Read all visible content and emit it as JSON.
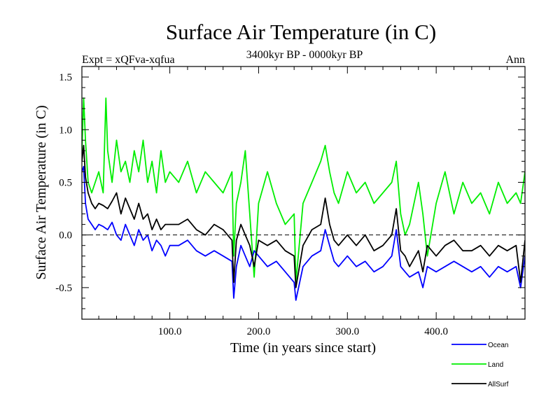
{
  "chart_data": {
    "type": "line",
    "title": "Surface Air Temperature (in C)",
    "subtitle": "3400kyr BP - 0000kyr BP",
    "top_left_label": "Expt = xQFva-xqfua",
    "top_right_label": "Ann",
    "xlabel": "Time (in years since start)",
    "ylabel": "Surface Air Temperature (in C)",
    "xlim": [
      1,
      500
    ],
    "ylim": [
      -0.8,
      1.6
    ],
    "x_ticks": [
      100,
      200,
      300,
      400
    ],
    "x_tick_labels": [
      "100.0",
      "200.0",
      "300.0",
      "400.0"
    ],
    "y_ticks": [
      -0.5,
      0.0,
      0.5,
      1.0,
      1.5
    ],
    "y_tick_labels": [
      "-0.5",
      "0.0",
      "0.5",
      "1.0",
      "1.5"
    ],
    "zero_line": true,
    "legend_position": "bottom-right, outside plot",
    "series": [
      {
        "name": "Ocean",
        "color": "#0000ff",
        "x": [
          1,
          3,
          5,
          8,
          12,
          16,
          20,
          25,
          30,
          35,
          40,
          45,
          50,
          55,
          60,
          65,
          70,
          75,
          80,
          85,
          90,
          95,
          100,
          110,
          120,
          130,
          140,
          150,
          160,
          170,
          172,
          175,
          180,
          185,
          190,
          195,
          200,
          210,
          220,
          230,
          240,
          242,
          250,
          260,
          270,
          275,
          280,
          285,
          290,
          300,
          310,
          320,
          330,
          340,
          350,
          355,
          360,
          365,
          370,
          380,
          385,
          390,
          400,
          410,
          420,
          430,
          440,
          450,
          460,
          470,
          480,
          490,
          495,
          500
        ],
        "values": [
          0.6,
          0.65,
          0.3,
          0.15,
          0.1,
          0.05,
          0.1,
          0.08,
          0.05,
          0.12,
          0.0,
          -0.05,
          0.1,
          0.0,
          -0.1,
          0.05,
          -0.05,
          0.0,
          -0.15,
          -0.05,
          -0.1,
          -0.2,
          -0.1,
          -0.1,
          -0.05,
          -0.15,
          -0.2,
          -0.15,
          -0.2,
          -0.25,
          -0.6,
          -0.3,
          -0.1,
          -0.2,
          -0.3,
          -0.15,
          -0.2,
          -0.3,
          -0.25,
          -0.35,
          -0.45,
          -0.62,
          -0.3,
          -0.2,
          -0.15,
          0.05,
          -0.1,
          -0.25,
          -0.3,
          -0.2,
          -0.3,
          -0.25,
          -0.35,
          -0.3,
          -0.2,
          0.05,
          -0.3,
          -0.35,
          -0.4,
          -0.35,
          -0.5,
          -0.3,
          -0.35,
          -0.3,
          -0.25,
          -0.3,
          -0.35,
          -0.3,
          -0.4,
          -0.3,
          -0.35,
          -0.3,
          -0.5,
          -0.2
        ]
      },
      {
        "name": "Land",
        "color": "#00ee00",
        "x": [
          1,
          3,
          5,
          8,
          12,
          16,
          20,
          25,
          28,
          30,
          35,
          40,
          45,
          50,
          55,
          60,
          65,
          70,
          75,
          80,
          85,
          90,
          95,
          100,
          110,
          120,
          130,
          140,
          150,
          160,
          170,
          172,
          175,
          180,
          185,
          190,
          195,
          200,
          210,
          220,
          230,
          240,
          242,
          250,
          260,
          270,
          275,
          280,
          285,
          290,
          300,
          310,
          320,
          330,
          340,
          350,
          355,
          360,
          365,
          370,
          380,
          385,
          390,
          400,
          410,
          420,
          430,
          440,
          450,
          460,
          470,
          480,
          490,
          495,
          500
        ],
        "values": [
          0.8,
          1.3,
          0.9,
          0.5,
          0.4,
          0.5,
          0.6,
          0.4,
          1.3,
          0.8,
          0.5,
          0.9,
          0.6,
          0.7,
          0.5,
          0.8,
          0.6,
          0.9,
          0.5,
          0.7,
          0.4,
          0.8,
          0.5,
          0.6,
          0.5,
          0.7,
          0.4,
          0.6,
          0.5,
          0.4,
          0.6,
          -0.2,
          0.3,
          0.5,
          0.8,
          0.2,
          -0.4,
          0.3,
          0.6,
          0.3,
          0.1,
          0.2,
          -0.45,
          0.3,
          0.5,
          0.7,
          0.85,
          0.6,
          0.4,
          0.3,
          0.6,
          0.4,
          0.5,
          0.3,
          0.4,
          0.5,
          0.7,
          0.2,
          0.0,
          0.1,
          0.5,
          0.2,
          -0.2,
          0.3,
          0.6,
          0.2,
          0.5,
          0.3,
          0.4,
          0.2,
          0.5,
          0.3,
          0.4,
          0.3,
          0.6
        ]
      },
      {
        "name": "AllSurf",
        "color": "#000000",
        "x": [
          1,
          3,
          5,
          8,
          12,
          16,
          20,
          25,
          30,
          35,
          40,
          45,
          50,
          55,
          60,
          65,
          70,
          75,
          80,
          85,
          90,
          95,
          100,
          110,
          120,
          130,
          140,
          150,
          160,
          170,
          172,
          175,
          180,
          185,
          190,
          195,
          200,
          210,
          220,
          230,
          240,
          242,
          250,
          260,
          270,
          275,
          280,
          285,
          290,
          300,
          310,
          320,
          330,
          340,
          350,
          355,
          360,
          365,
          370,
          380,
          385,
          390,
          400,
          410,
          420,
          430,
          440,
          450,
          460,
          470,
          480,
          490,
          495,
          500
        ],
        "values": [
          0.7,
          0.85,
          0.55,
          0.4,
          0.3,
          0.25,
          0.3,
          0.28,
          0.25,
          0.32,
          0.4,
          0.2,
          0.35,
          0.25,
          0.15,
          0.3,
          0.15,
          0.2,
          0.05,
          0.15,
          0.05,
          0.1,
          0.1,
          0.1,
          0.15,
          0.05,
          0.0,
          0.1,
          0.05,
          -0.05,
          -0.45,
          -0.05,
          0.1,
          0.0,
          -0.1,
          -0.3,
          -0.05,
          -0.1,
          -0.05,
          -0.15,
          -0.2,
          -0.5,
          -0.1,
          0.05,
          0.1,
          0.35,
          0.1,
          -0.05,
          -0.1,
          0.0,
          -0.1,
          0.0,
          -0.15,
          -0.1,
          0.0,
          0.25,
          -0.15,
          -0.2,
          -0.3,
          -0.15,
          -0.35,
          -0.1,
          -0.2,
          -0.1,
          -0.05,
          -0.15,
          -0.15,
          -0.1,
          -0.2,
          -0.1,
          -0.15,
          -0.1,
          -0.45,
          -0.05
        ]
      }
    ]
  }
}
